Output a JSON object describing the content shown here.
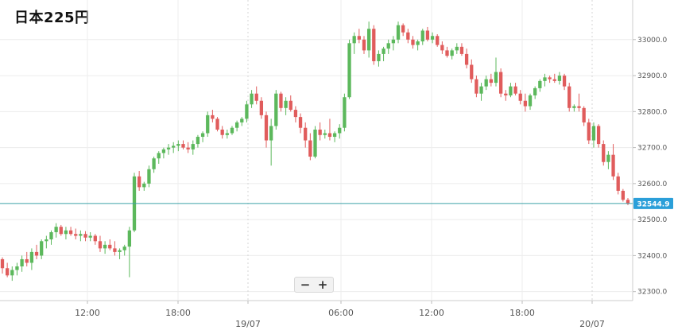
{
  "title": "日本225円",
  "zoom": {
    "minus_label": "−",
    "plus_label": "+"
  },
  "colors": {
    "up": "#5cb85c",
    "down": "#e05c5c",
    "price_line": "#3aa0a8",
    "price_label_bg": "#2b9fd9"
  },
  "chart_data": {
    "type": "candlestick",
    "title": "日本225円",
    "xlabel": "",
    "ylabel": "",
    "ylim": [
      32275,
      33110
    ],
    "y_ticks": [
      "32300.0",
      "32400.0",
      "32500.0",
      "32600.0",
      "32700.0",
      "32800.0",
      "32900.0",
      "33000.0"
    ],
    "x_ticks": [
      "12:00",
      "18:00",
      "19/07",
      "06:00",
      "12:00",
      "18:00",
      "20/07"
    ],
    "current_price": "32544.9",
    "series": [
      {
        "values": [
          [
            32390,
            32395,
            32350,
            32365
          ],
          [
            32365,
            32380,
            32340,
            32345
          ],
          [
            32345,
            32370,
            32330,
            32360
          ],
          [
            32360,
            32380,
            32345,
            32370
          ],
          [
            32370,
            32400,
            32355,
            32390
          ],
          [
            32390,
            32410,
            32370,
            32380
          ],
          [
            32380,
            32420,
            32360,
            32410
          ],
          [
            32410,
            32430,
            32390,
            32400
          ],
          [
            32400,
            32445,
            32390,
            32440
          ],
          [
            32440,
            32455,
            32420,
            32445
          ],
          [
            32445,
            32470,
            32430,
            32465
          ],
          [
            32465,
            32490,
            32450,
            32480
          ],
          [
            32480,
            32485,
            32455,
            32460
          ],
          [
            32460,
            32480,
            32445,
            32470
          ],
          [
            32470,
            32480,
            32455,
            32460
          ],
          [
            32460,
            32475,
            32445,
            32455
          ],
          [
            32455,
            32470,
            32440,
            32460
          ],
          [
            32460,
            32468,
            32440,
            32450
          ],
          [
            32450,
            32465,
            32440,
            32455
          ],
          [
            32455,
            32460,
            32430,
            32440
          ],
          [
            32440,
            32455,
            32410,
            32420
          ],
          [
            32420,
            32440,
            32405,
            32430
          ],
          [
            32430,
            32445,
            32415,
            32420
          ],
          [
            32420,
            32440,
            32400,
            32410
          ],
          [
            32410,
            32420,
            32390,
            32415
          ],
          [
            32415,
            32430,
            32400,
            32425
          ],
          [
            32425,
            32480,
            32340,
            32470
          ],
          [
            32470,
            32630,
            32465,
            32620
          ],
          [
            32620,
            32635,
            32580,
            32590
          ],
          [
            32590,
            32605,
            32580,
            32600
          ],
          [
            32600,
            32650,
            32590,
            32640
          ],
          [
            32640,
            32675,
            32630,
            32670
          ],
          [
            32670,
            32690,
            32655,
            32685
          ],
          [
            32685,
            32700,
            32670,
            32695
          ],
          [
            32695,
            32710,
            32680,
            32700
          ],
          [
            32700,
            32715,
            32685,
            32705
          ],
          [
            32705,
            32720,
            32690,
            32710
          ],
          [
            32710,
            32720,
            32695,
            32700
          ],
          [
            32700,
            32715,
            32685,
            32695
          ],
          [
            32695,
            32720,
            32680,
            32710
          ],
          [
            32710,
            32735,
            32700,
            32730
          ],
          [
            32730,
            32745,
            32715,
            32740
          ],
          [
            32740,
            32800,
            32730,
            32790
          ],
          [
            32790,
            32805,
            32770,
            32780
          ],
          [
            32780,
            32785,
            32745,
            32750
          ],
          [
            32750,
            32760,
            32725,
            32735
          ],
          [
            32735,
            32750,
            32725,
            32740
          ],
          [
            32740,
            32760,
            32735,
            32755
          ],
          [
            32755,
            32775,
            32745,
            32770
          ],
          [
            32770,
            32785,
            32760,
            32780
          ],
          [
            32780,
            32830,
            32770,
            32820
          ],
          [
            32820,
            32860,
            32810,
            32850
          ],
          [
            32850,
            32870,
            32820,
            32830
          ],
          [
            32830,
            32840,
            32780,
            32790
          ],
          [
            32790,
            32800,
            32700,
            32720
          ],
          [
            32720,
            32780,
            32650,
            32760
          ],
          [
            32760,
            32860,
            32750,
            32850
          ],
          [
            32850,
            32855,
            32800,
            32810
          ],
          [
            32810,
            32840,
            32790,
            32830
          ],
          [
            32830,
            32845,
            32800,
            32805
          ],
          [
            32805,
            32815,
            32770,
            32785
          ],
          [
            32785,
            32795,
            32740,
            32755
          ],
          [
            32755,
            32770,
            32700,
            32720
          ],
          [
            32720,
            32740,
            32665,
            32675
          ],
          [
            32675,
            32760,
            32670,
            32750
          ],
          [
            32750,
            32770,
            32720,
            32735
          ],
          [
            32735,
            32750,
            32725,
            32740
          ],
          [
            32740,
            32780,
            32720,
            32730
          ],
          [
            32730,
            32745,
            32715,
            32740
          ],
          [
            32740,
            32765,
            32725,
            32755
          ],
          [
            32755,
            32850,
            32745,
            32840
          ],
          [
            32840,
            33000,
            32835,
            32990
          ],
          [
            32990,
            33020,
            32960,
            33010
          ],
          [
            33010,
            33030,
            32990,
            33000
          ],
          [
            33000,
            33010,
            32960,
            32970
          ],
          [
            32970,
            33050,
            32950,
            33030
          ],
          [
            33030,
            33040,
            32930,
            32940
          ],
          [
            32940,
            32970,
            32925,
            32960
          ],
          [
            32960,
            32980,
            32940,
            32975
          ],
          [
            32975,
            33000,
            32960,
            32990
          ],
          [
            32990,
            33010,
            32970,
            33000
          ],
          [
            33000,
            33050,
            32990,
            33040
          ],
          [
            33040,
            33045,
            33010,
            33020
          ],
          [
            33020,
            33030,
            32990,
            33000
          ],
          [
            33000,
            33010,
            32975,
            32985
          ],
          [
            32985,
            33000,
            32970,
            32995
          ],
          [
            32995,
            33030,
            32985,
            33025
          ],
          [
            33025,
            33035,
            32995,
            33000
          ],
          [
            33000,
            33020,
            32990,
            33010
          ],
          [
            33010,
            33015,
            32980,
            32985
          ],
          [
            32985,
            32995,
            32960,
            32970
          ],
          [
            32970,
            32980,
            32950,
            32955
          ],
          [
            32955,
            32975,
            32945,
            32970
          ],
          [
            32970,
            32990,
            32960,
            32980
          ],
          [
            32980,
            32990,
            32955,
            32960
          ],
          [
            32960,
            32975,
            32920,
            32930
          ],
          [
            32930,
            32945,
            32880,
            32890
          ],
          [
            32890,
            32900,
            32840,
            32850
          ],
          [
            32850,
            32880,
            32830,
            32870
          ],
          [
            32870,
            32900,
            32860,
            32890
          ],
          [
            32890,
            32905,
            32870,
            32880
          ],
          [
            32880,
            32950,
            32870,
            32910
          ],
          [
            32910,
            32920,
            32840,
            32850
          ],
          [
            32850,
            32860,
            32830,
            32845
          ],
          [
            32845,
            32880,
            32840,
            32870
          ],
          [
            32870,
            32880,
            32845,
            32850
          ],
          [
            32850,
            32860,
            32820,
            32830
          ],
          [
            32830,
            32850,
            32800,
            32815
          ],
          [
            32815,
            32850,
            32805,
            32845
          ],
          [
            32845,
            32870,
            32835,
            32865
          ],
          [
            32865,
            32890,
            32855,
            32885
          ],
          [
            32885,
            32905,
            32870,
            32895
          ],
          [
            32895,
            32900,
            32880,
            32890
          ],
          [
            32890,
            32905,
            32880,
            32885
          ],
          [
            32885,
            32910,
            32875,
            32900
          ],
          [
            32900,
            32905,
            32860,
            32870
          ],
          [
            32870,
            32880,
            32800,
            32810
          ],
          [
            32810,
            32820,
            32800,
            32815
          ],
          [
            32815,
            32850,
            32800,
            32810
          ],
          [
            32810,
            32815,
            32760,
            32770
          ],
          [
            32770,
            32780,
            32710,
            32720
          ],
          [
            32720,
            32770,
            32700,
            32760
          ],
          [
            32760,
            32765,
            32700,
            32710
          ],
          [
            32710,
            32720,
            32650,
            32660
          ],
          [
            32660,
            32690,
            32640,
            32680
          ],
          [
            32680,
            32710,
            32610,
            32620
          ],
          [
            32620,
            32630,
            32570,
            32580
          ],
          [
            32580,
            32585,
            32550,
            32555
          ],
          [
            32555,
            32560,
            32540,
            32545
          ]
        ]
      }
    ]
  }
}
